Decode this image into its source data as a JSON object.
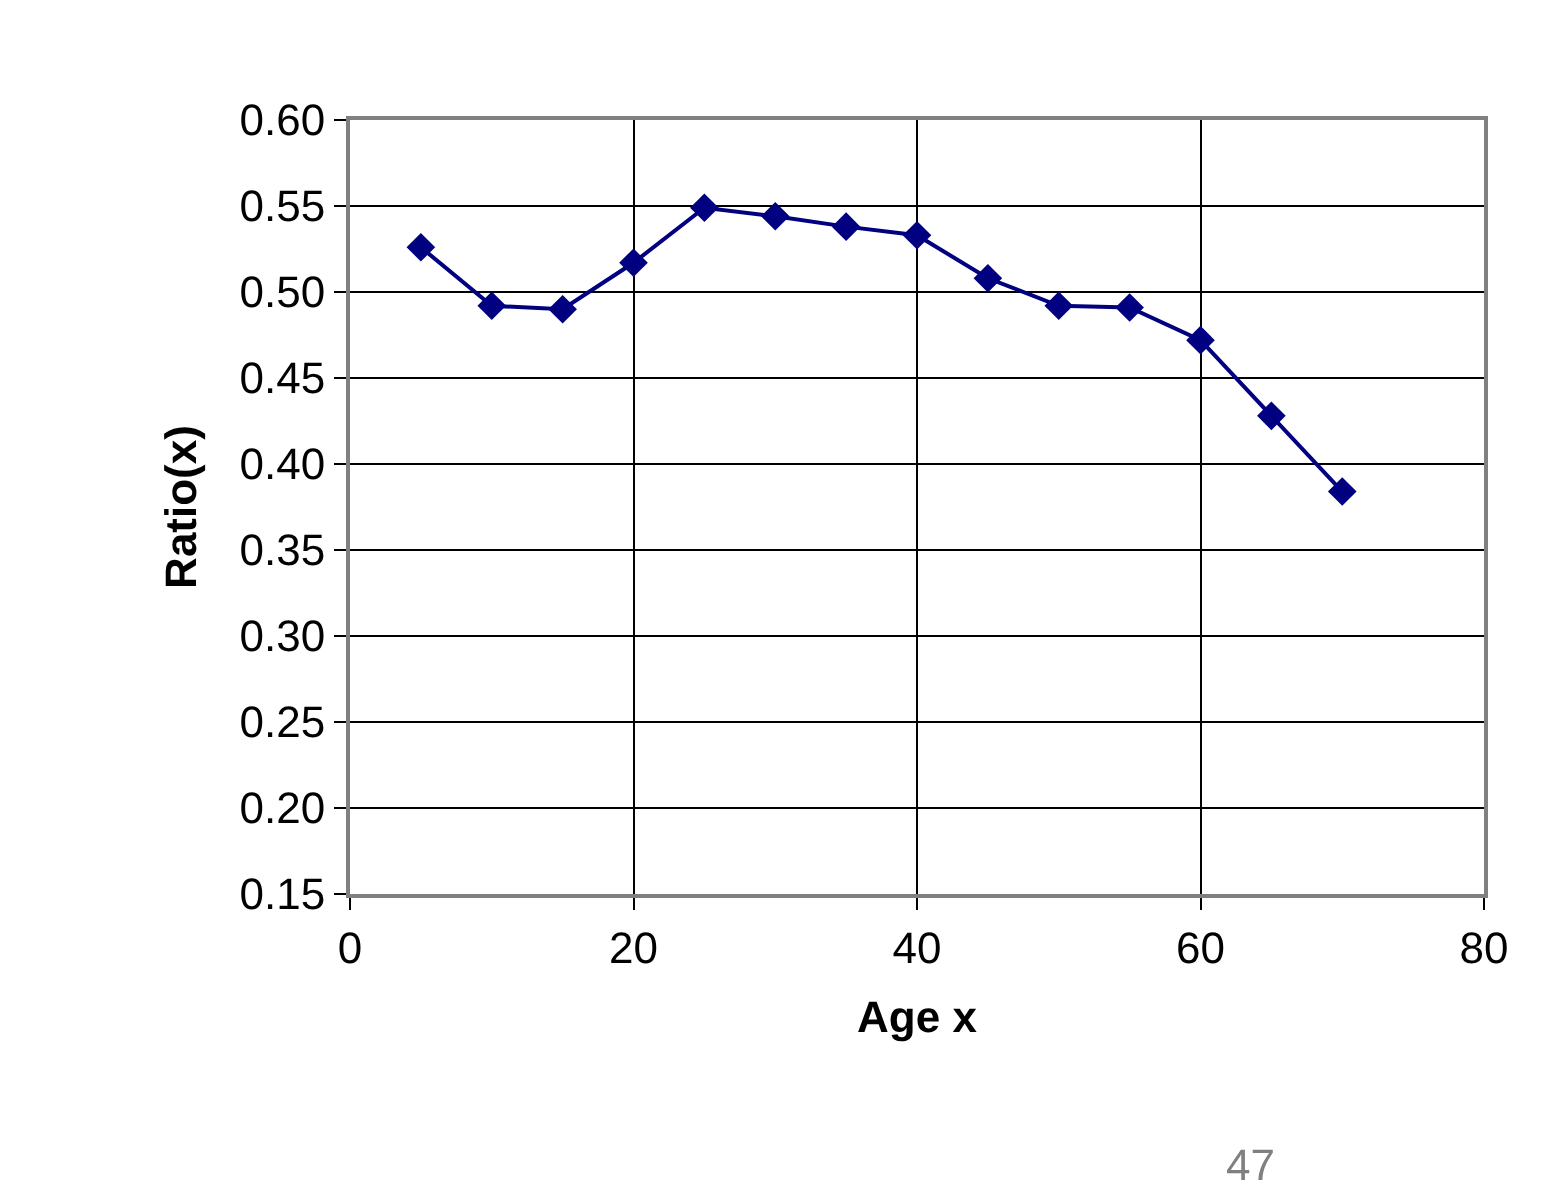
{
  "chart_data": {
    "type": "line",
    "xlabel": "Age x",
    "ylabel": "Ratio(x)",
    "x": [
      5,
      10,
      15,
      20,
      25,
      30,
      35,
      40,
      45,
      50,
      55,
      60,
      65,
      70
    ],
    "series": [
      {
        "color": "#000080",
        "values": [
          0.526,
          0.492,
          0.49,
          0.517,
          0.549,
          0.544,
          0.538,
          0.533,
          0.508,
          0.492,
          0.491,
          0.472,
          0.428,
          0.384
        ]
      }
    ],
    "xlim": [
      0,
      80
    ],
    "xticks": [
      0,
      20,
      40,
      60,
      80
    ],
    "ylim": [
      0.15,
      0.6
    ],
    "yticks": [
      {
        "value": 0.15,
        "label": "0.15"
      },
      {
        "value": 0.2,
        "label": "0.20"
      },
      {
        "value": 0.25,
        "label": "0.25"
      },
      {
        "value": 0.3,
        "label": "0.30"
      },
      {
        "value": 0.35,
        "label": "0.35"
      },
      {
        "value": 0.4,
        "label": "0.40"
      },
      {
        "value": 0.45,
        "label": "0.45"
      },
      {
        "value": 0.5,
        "label": "0.50"
      },
      {
        "value": 0.55,
        "label": "0.55"
      },
      {
        "value": 0.6,
        "label": "0.60"
      }
    ],
    "grid": true,
    "marker": "diamond",
    "line_style": "solid",
    "annotations": [
      "47"
    ]
  }
}
